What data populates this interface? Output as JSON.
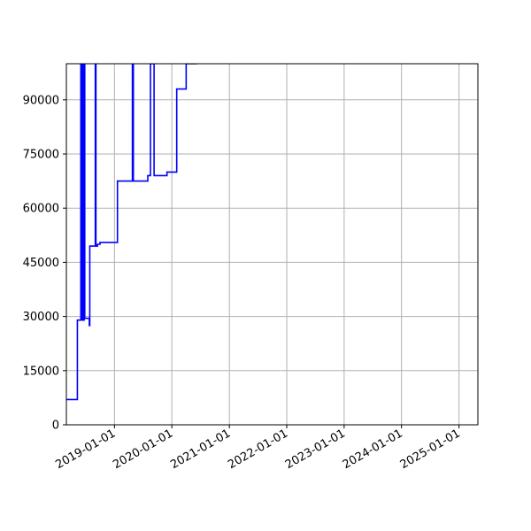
{
  "chart_data": {
    "type": "line",
    "title": "",
    "xlabel": "",
    "ylabel": "",
    "x_axis_type": "date",
    "xlim": [
      "2018-03-01",
      "2025-05-01"
    ],
    "ylim": [
      0,
      100000
    ],
    "grid": true,
    "colors": {
      "series": "#0000ff",
      "grid": "#b0b0b0",
      "axes": "#000000"
    },
    "x_ticks": [
      "2019-01-01",
      "2020-01-01",
      "2021-01-01",
      "2022-01-01",
      "2023-01-01",
      "2024-01-01",
      "2025-01-01"
    ],
    "y_ticks": [
      0,
      15000,
      30000,
      45000,
      60000,
      75000,
      90000
    ],
    "series": [
      {
        "name": "",
        "step": "post",
        "x": [
          "2018-03-01",
          "2018-04-10",
          "2018-05-10",
          "2018-06-01",
          "2018-06-04",
          "2018-06-07",
          "2018-06-10",
          "2018-06-14",
          "2018-06-18",
          "2018-06-22",
          "2018-06-26",
          "2018-07-05",
          "2018-07-25",
          "2018-07-28",
          "2018-09-01",
          "2018-09-05",
          "2018-09-15",
          "2018-10-01",
          "2019-01-20",
          "2019-04-25",
          "2019-05-01",
          "2019-08-01",
          "2019-08-18",
          "2019-09-10",
          "2019-11-20",
          "2019-12-01",
          "2020-02-01",
          "2020-04-01",
          "2020-06-01",
          "2020-06-10"
        ],
        "y": [
          7000,
          7000,
          29000,
          100000,
          29000,
          100000,
          29000,
          100000,
          29000,
          100000,
          29500,
          29500,
          27500,
          49500,
          100000,
          49500,
          50000,
          50500,
          67500,
          100000,
          67500,
          69000,
          100000,
          69000,
          69000,
          70000,
          93000,
          100000,
          100000,
          100000
        ]
      }
    ]
  }
}
